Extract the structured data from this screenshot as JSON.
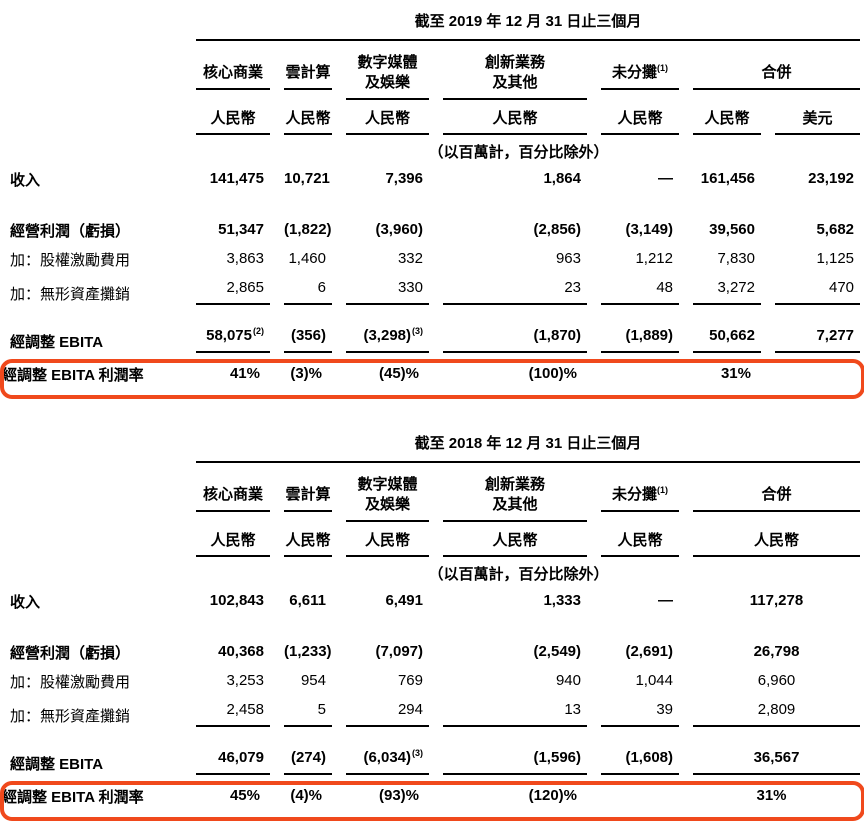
{
  "page": {
    "background": "#ffffff",
    "highlight_color": "#F0491C",
    "rule_color": "#000000",
    "units_note": "（以百萬計，百分比除外）"
  },
  "tables": [
    {
      "title": "截至 2019 年 12 月 31 日止三個月",
      "columns": [
        {
          "lines": [
            "核心商業"
          ]
        },
        {
          "lines": [
            "雲計算"
          ]
        },
        {
          "lines": [
            "數字媒體",
            "及娛樂"
          ]
        },
        {
          "lines": [
            "創新業務",
            "及其他"
          ]
        },
        {
          "lines": [
            "未分攤"
          ],
          "sup": "(1)"
        },
        {
          "lines": [
            "合併"
          ],
          "span": 2
        }
      ],
      "currencies": [
        {
          "label": "人民幣"
        },
        {
          "label": "人民幣"
        },
        {
          "label": "人民幣"
        },
        {
          "label": "人民幣"
        },
        {
          "label": "人民幣"
        },
        {
          "label": "人民幣"
        },
        {
          "label": "美元"
        }
      ],
      "rows": [
        {
          "label": "收入",
          "bold": true,
          "cells": [
            "141,475",
            "10,721",
            "7,396",
            "1,864",
            "—",
            "161,456",
            "23,192"
          ]
        },
        {
          "spacer": true,
          "size": 1
        },
        {
          "label": "經營利潤（虧損）",
          "bold": true,
          "cells": [
            "51,347",
            "(1,822)",
            "(3,960)",
            "(2,856)",
            "(3,149)",
            "39,560",
            "5,682"
          ]
        },
        {
          "label": "加：股權激勵費用",
          "cells": [
            "3,863",
            "1,460",
            "332",
            "963",
            "1,212",
            "7,830",
            "1,125"
          ]
        },
        {
          "label": "加：無形資產攤銷",
          "underline": true,
          "cells": [
            "2,865",
            "6",
            "330",
            "23",
            "48",
            "3,272",
            "470"
          ]
        },
        {
          "spacer": true,
          "size": 2
        },
        {
          "label": "經調整 EBITA",
          "bold": true,
          "underline": true,
          "cells": [
            {
              "v": "58,075",
              "sup": "(2)"
            },
            "(356)",
            {
              "v": "(3,298)",
              "sup": "(3)"
            },
            "(1,870)",
            "(1,889)",
            "50,662",
            "7,277"
          ]
        },
        {
          "label": "經調整 EBITA 利潤率",
          "bold": true,
          "highlight": true,
          "cells": [
            "41%",
            "(3)%",
            "(45)%",
            "(100)%",
            "",
            "31%",
            ""
          ]
        }
      ]
    },
    {
      "title": "截至 2018 年 12 月 31 日止三個月",
      "merged_last": true,
      "columns": [
        {
          "lines": [
            "核心商業"
          ]
        },
        {
          "lines": [
            "雲計算"
          ]
        },
        {
          "lines": [
            "數字媒體",
            "及娛樂"
          ]
        },
        {
          "lines": [
            "創新業務",
            "及其他"
          ]
        },
        {
          "lines": [
            "未分攤"
          ],
          "sup": "(1)"
        },
        {
          "lines": [
            "合併"
          ],
          "span": 2
        }
      ],
      "currencies": [
        {
          "label": "人民幣"
        },
        {
          "label": "人民幣"
        },
        {
          "label": "人民幣"
        },
        {
          "label": "人民幣"
        },
        {
          "label": "人民幣"
        },
        {
          "label": "人民幣",
          "span": 2
        }
      ],
      "rows": [
        {
          "label": "收入",
          "bold": true,
          "cells": [
            "102,843",
            "6,611",
            "6,491",
            "1,333",
            "—",
            "117,278"
          ]
        },
        {
          "spacer": true,
          "size": 1
        },
        {
          "label": "經營利潤（虧損）",
          "bold": true,
          "cells": [
            "40,368",
            "(1,233)",
            "(7,097)",
            "(2,549)",
            "(2,691)",
            "26,798"
          ]
        },
        {
          "label": "加：股權激勵費用",
          "cells": [
            "3,253",
            "954",
            "769",
            "940",
            "1,044",
            "6,960"
          ]
        },
        {
          "label": "加：無形資產攤銷",
          "underline": true,
          "cells": [
            "2,458",
            "5",
            "294",
            "13",
            "39",
            "2,809"
          ]
        },
        {
          "spacer": true,
          "size": 2
        },
        {
          "label": "經調整 EBITA",
          "bold": true,
          "underline": true,
          "cells": [
            "46,079",
            "(274)",
            {
              "v": "(6,034)",
              "sup": "(3)"
            },
            "(1,596)",
            "(1,608)",
            "36,567"
          ]
        },
        {
          "label": "經調整 EBITA 利潤率",
          "bold": true,
          "highlight": true,
          "cells": [
            "45%",
            "(4)%",
            "(93)%",
            "(120)%",
            "",
            "31%"
          ]
        }
      ]
    }
  ]
}
